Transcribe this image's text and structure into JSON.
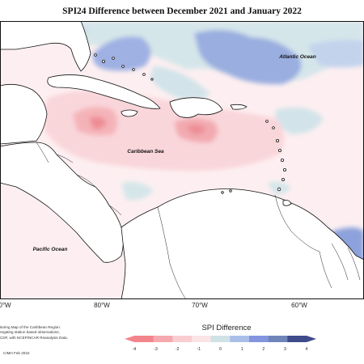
{
  "title": "SPI24 Difference between December 2021 and January 2022",
  "map": {
    "labels": {
      "atlantic": "Atlantic Ocean",
      "caribbean": "Caribbean Sea",
      "pacific": "Pacific Ocean"
    },
    "longitudes": [
      "0°W",
      "80°W",
      "70°W",
      "60°W"
    ]
  },
  "legend": {
    "title": "SPI Difference",
    "ticks": [
      "-4",
      "-3",
      "-2",
      "-1",
      "0",
      "1",
      "2",
      "3",
      "4"
    ],
    "colors": [
      "#f4848c",
      "#f5a9ae",
      "#f8cdd0",
      "#fbe4e6",
      "#cfe2e6",
      "#a9bfe9",
      "#8594de",
      "#6f85b9",
      "#3f4b8a"
    ]
  },
  "credit": {
    "lines": [
      "itoring Map of the Caribbean Region.",
      "regating station based observations,",
      "CDF, with NCEP/NCAR Reanalysis Data."
    ],
    "date": "CIMH Feb 2022"
  }
}
